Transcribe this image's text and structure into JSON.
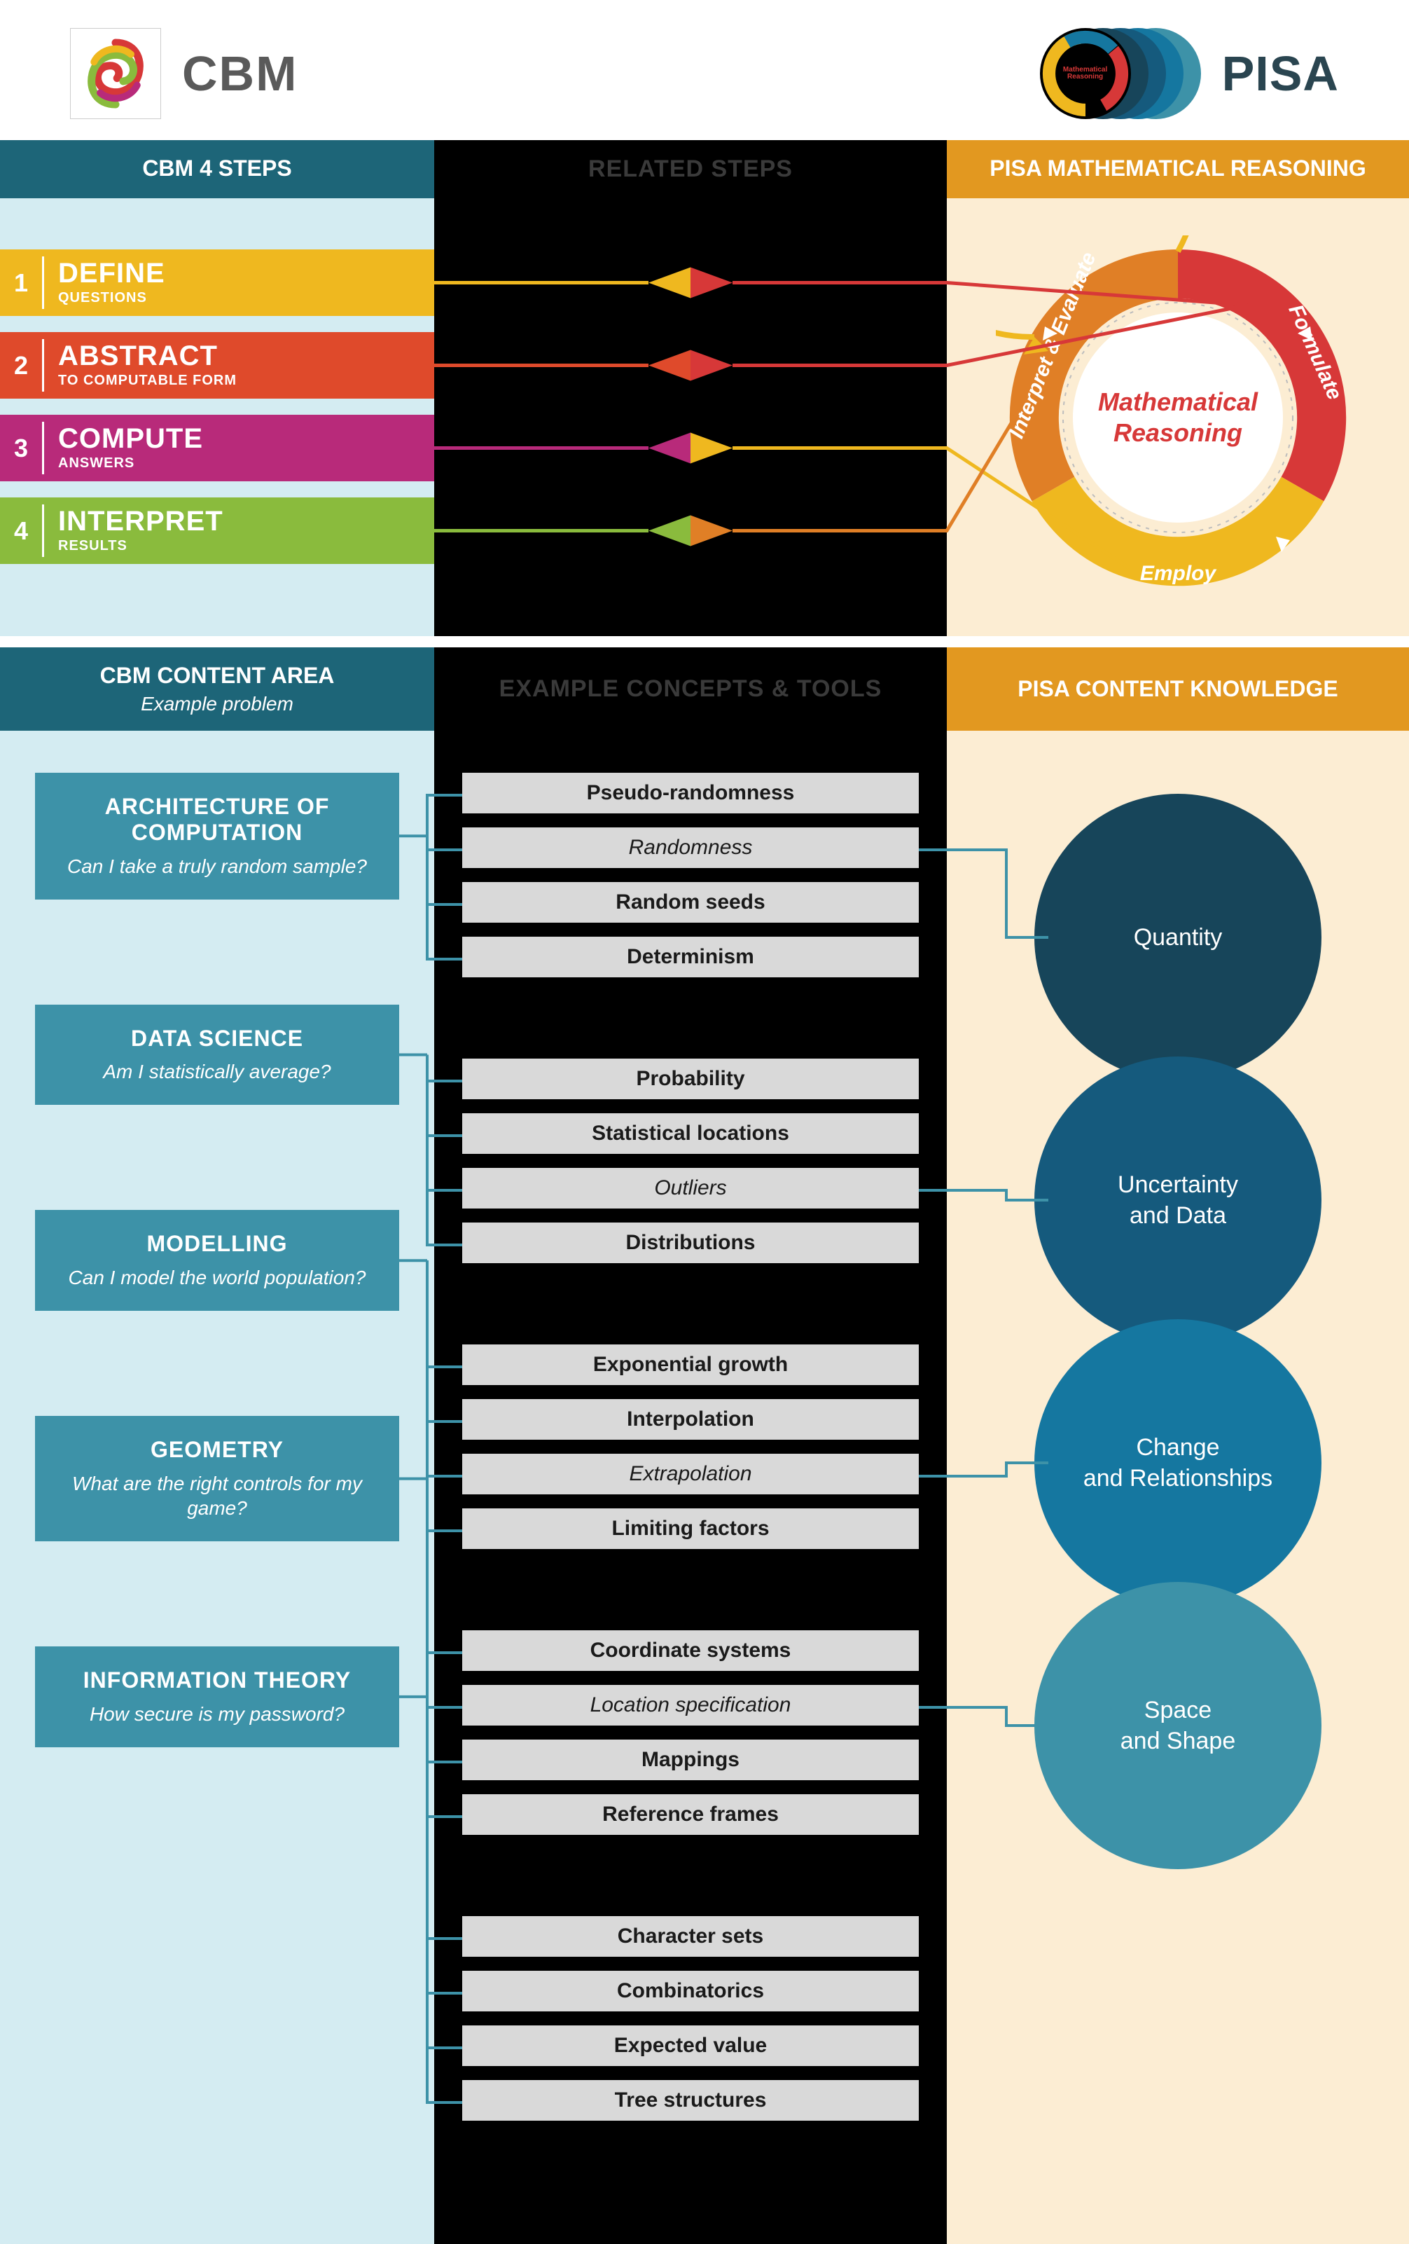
{
  "logos": {
    "cbm_label": "CBM",
    "pisa_label": "PISA",
    "pisa_badge_text": "Mathematical Reasoning"
  },
  "section1": {
    "cbm_header": "CBM 4 STEPS",
    "mid_header": "RELATED STEPS",
    "pisa_header": "PISA MATHEMATICAL REASONING",
    "steps": [
      {
        "num": "1",
        "title": "DEFINE",
        "sub": "QUESTIONS",
        "color": "#efb81f",
        "connector_to": "formulate"
      },
      {
        "num": "2",
        "title": "ABSTRACT",
        "sub": "TO COMPUTABLE FORM",
        "color": "#df4a2b",
        "connector_to": "formulate"
      },
      {
        "num": "3",
        "title": "COMPUTE",
        "sub": "ANSWERS",
        "color": "#b82a7a",
        "connector_to": "employ"
      },
      {
        "num": "4",
        "title": "INTERPRET",
        "sub": "RESULTS",
        "color": "#8abb3d",
        "connector_to": "interpret"
      }
    ],
    "reasoning": {
      "center_text": "Mathematical Reasoning",
      "arcs": [
        {
          "key": "formulate",
          "label": "Formulate",
          "color": "#d73838"
        },
        {
          "key": "employ",
          "label": "Employ",
          "color": "#efb81f"
        },
        {
          "key": "interpret",
          "label": "Interpret & Evaluate",
          "color": "#e07f26"
        }
      ],
      "outer_ring_color": "#efb81f"
    },
    "connector_diamonds": [
      {
        "left_color": "#efb81f",
        "right_color": "#d73838"
      },
      {
        "left_color": "#df4a2b",
        "right_color": "#d73838"
      },
      {
        "left_color": "#b82a7a",
        "right_color": "#efb81f"
      },
      {
        "left_color": "#8abb3d",
        "right_color": "#e07f26"
      }
    ]
  },
  "section2": {
    "cbm_header": "CBM CONTENT AREA",
    "cbm_header_sub": "Example problem",
    "mid_header": "EXAMPLE CONCEPTS & TOOLS",
    "pisa_header": "PISA CONTENT KNOWLEDGE",
    "cbm_cards": [
      {
        "title": "ARCHITECTURE OF COMPUTATION",
        "q": "Can I take a truly random sample?",
        "link_pisa": 0,
        "link_concept_idx": 1
      },
      {
        "title": "DATA SCIENCE",
        "q": "Am I statistically average?",
        "link_pisa": 1,
        "link_concept_idx": 2
      },
      {
        "title": "MODELLING",
        "q": "Can I model the world population?",
        "link_pisa": 2,
        "link_concept_idx": 2
      },
      {
        "title": "GEOMETRY",
        "q": "What are the right controls for my game?",
        "link_pisa": 3,
        "link_concept_idx": 1
      },
      {
        "title": "INFORMATION THEORY",
        "q": "How secure is my password?",
        "link_pisa": null,
        "link_concept_idx": null
      }
    ],
    "concept_groups": [
      [
        {
          "text": "Pseudo-randomness",
          "italic": false
        },
        {
          "text": "Randomness",
          "italic": true
        },
        {
          "text": "Random seeds",
          "italic": false
        },
        {
          "text": "Determinism",
          "italic": false
        }
      ],
      [
        {
          "text": "Probability",
          "italic": false
        },
        {
          "text": "Statistical locations",
          "italic": false
        },
        {
          "text": "Outliers",
          "italic": true
        },
        {
          "text": "Distributions",
          "italic": false
        }
      ],
      [
        {
          "text": "Exponential growth",
          "italic": false
        },
        {
          "text": "Interpolation",
          "italic": false
        },
        {
          "text": "Extrapolation",
          "italic": true
        },
        {
          "text": "Limiting factors",
          "italic": false
        }
      ],
      [
        {
          "text": "Coordinate systems",
          "italic": false
        },
        {
          "text": "Location specification",
          "italic": true
        },
        {
          "text": "Mappings",
          "italic": false
        },
        {
          "text": "Reference frames",
          "italic": false
        }
      ],
      [
        {
          "text": "Character sets",
          "italic": false
        },
        {
          "text": "Combinatorics",
          "italic": false
        },
        {
          "text": "Expected value",
          "italic": false
        },
        {
          "text": "Tree structures",
          "italic": false
        }
      ]
    ],
    "pisa_circles": [
      {
        "label": "Quantity",
        "color": "#17455a"
      },
      {
        "label": "Uncertainty and Data",
        "color": "#155a7d"
      },
      {
        "label": "Change and Relationships",
        "color": "#1577a0"
      },
      {
        "label": "Space and Shape",
        "color": "#3d92a8"
      }
    ],
    "connector_color": "#3d92a8"
  },
  "styling": {
    "bg": "#000000",
    "cbm_panel_bg": "#d4ecf2",
    "pisa_panel_bg": "#fcedd3",
    "cbm_header_bg": "#1d6578",
    "pisa_header_bg": "#e29820",
    "card_bg": "#3d92a8",
    "concept_bg": "#d9d9d9",
    "mid_header_color": "#3a3a3a"
  }
}
